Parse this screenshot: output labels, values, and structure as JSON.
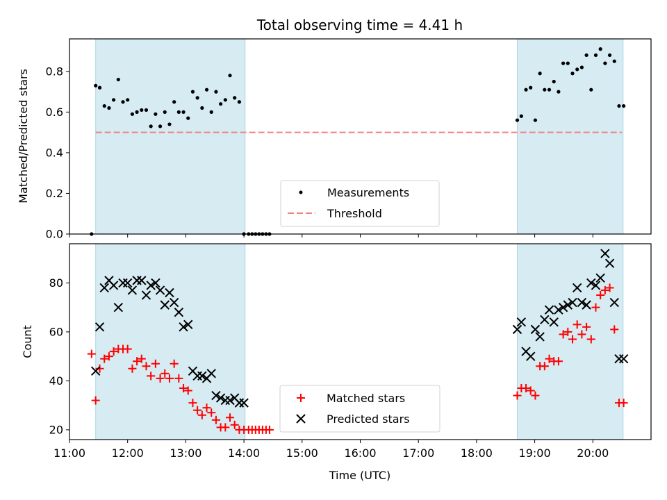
{
  "figure": {
    "title": "Total observing time = 4.41 h"
  },
  "chart_data": [
    {
      "type": "scatter",
      "panel": "top",
      "ylabel": "Matched/Predicted stars",
      "xlabel": "",
      "xlim": [
        11.0,
        21.0
      ],
      "ylim": [
        0.0,
        0.96
      ],
      "yticks": [
        0.0,
        0.2,
        0.4,
        0.6,
        0.8
      ],
      "ytick_labels": [
        "0.0",
        "0.2",
        "0.4",
        "0.6",
        "0.8"
      ],
      "grid": false,
      "legend": {
        "position": "lower-center",
        "entries": [
          "Measurements",
          "Threshold"
        ]
      },
      "shaded_regions": [
        [
          11.45,
          14.02
        ],
        [
          18.7,
          20.52
        ]
      ],
      "threshold": {
        "name": "Threshold",
        "value": 0.5,
        "x_range": [
          11.45,
          20.5
        ],
        "color": "#f08080",
        "style": "dashed"
      },
      "series": [
        {
          "name": "Measurements",
          "marker": "dot",
          "color": "#000000",
          "x": [
            11.38,
            11.45,
            11.52,
            11.6,
            11.68,
            11.76,
            11.84,
            11.92,
            12.0,
            12.08,
            12.16,
            12.24,
            12.32,
            12.4,
            12.48,
            12.56,
            12.64,
            12.72,
            12.8,
            12.88,
            12.96,
            13.04,
            13.12,
            13.2,
            13.28,
            13.36,
            13.44,
            13.52,
            13.6,
            13.68,
            13.76,
            13.84,
            13.92,
            14.0,
            14.08,
            14.14,
            14.2,
            14.26,
            14.32,
            14.38,
            14.44,
            18.7,
            18.77,
            18.85,
            18.93,
            19.01,
            19.09,
            19.17,
            19.25,
            19.33,
            19.41,
            19.49,
            19.57,
            19.65,
            19.73,
            19.81,
            19.89,
            19.97,
            20.05,
            20.13,
            20.21,
            20.29,
            20.37,
            20.45,
            20.53
          ],
          "y": [
            0.0,
            0.73,
            0.72,
            0.63,
            0.62,
            0.66,
            0.76,
            0.65,
            0.66,
            0.59,
            0.6,
            0.61,
            0.61,
            0.53,
            0.59,
            0.53,
            0.6,
            0.54,
            0.65,
            0.6,
            0.6,
            0.57,
            0.7,
            0.67,
            0.62,
            0.71,
            0.6,
            0.7,
            0.64,
            0.66,
            0.78,
            0.67,
            0.65,
            0.0,
            0.0,
            0.0,
            0.0,
            0.0,
            0.0,
            0.0,
            0.0,
            0.56,
            0.58,
            0.71,
            0.72,
            0.56,
            0.79,
            0.71,
            0.71,
            0.75,
            0.7,
            0.84,
            0.84,
            0.79,
            0.81,
            0.82,
            0.88,
            0.71,
            0.88,
            0.91,
            0.84,
            0.88,
            0.85,
            0.63,
            0.63
          ]
        }
      ]
    },
    {
      "type": "scatter",
      "panel": "bottom",
      "ylabel": "Count",
      "xlabel": "Time (UTC)",
      "xlim": [
        11.0,
        21.0
      ],
      "ylim": [
        16,
        96
      ],
      "yticks": [
        20,
        40,
        60,
        80
      ],
      "ytick_labels": [
        "20",
        "40",
        "60",
        "80"
      ],
      "xticks": [
        11,
        12,
        13,
        14,
        15,
        16,
        17,
        18,
        19,
        20
      ],
      "xtick_labels": [
        "11:00",
        "12:00",
        "13:00",
        "14:00",
        "15:00",
        "16:00",
        "17:00",
        "18:00",
        "19:00",
        "20:00"
      ],
      "grid": false,
      "legend": {
        "position": "lower-center",
        "entries": [
          "Matched stars",
          "Predicted stars"
        ]
      },
      "shaded_regions": [
        [
          11.45,
          14.02
        ],
        [
          18.7,
          20.52
        ]
      ],
      "series": [
        {
          "name": "Matched stars",
          "marker": "plus",
          "color": "#ff0000",
          "x": [
            11.38,
            11.45,
            11.52,
            11.6,
            11.68,
            11.76,
            11.84,
            11.92,
            12.0,
            12.08,
            12.16,
            12.24,
            12.32,
            12.4,
            12.48,
            12.56,
            12.64,
            12.72,
            12.8,
            12.88,
            12.96,
            13.04,
            13.12,
            13.2,
            13.28,
            13.36,
            13.44,
            13.52,
            13.6,
            13.68,
            13.76,
            13.84,
            13.92,
            14.0,
            14.08,
            14.14,
            14.2,
            14.26,
            14.32,
            14.38,
            14.44,
            18.7,
            18.77,
            18.85,
            18.93,
            19.01,
            19.09,
            19.17,
            19.25,
            19.33,
            19.41,
            19.49,
            19.57,
            19.65,
            19.73,
            19.81,
            19.89,
            19.97,
            20.05,
            20.13,
            20.21,
            20.29,
            20.37,
            20.45,
            20.53
          ],
          "y": [
            51,
            32,
            45,
            49,
            50,
            52,
            53,
            53,
            53,
            45,
            48,
            49,
            46,
            42,
            47,
            41,
            43,
            41,
            47,
            41,
            37,
            36,
            31,
            28,
            26,
            29,
            27,
            24,
            21,
            21,
            25,
            22,
            20,
            20,
            20,
            20,
            20,
            20,
            20,
            20,
            20,
            34,
            37,
            37,
            36,
            34,
            46,
            46,
            49,
            48,
            48,
            59,
            60,
            57,
            63,
            59,
            62,
            57,
            70,
            75,
            77,
            78,
            61,
            31,
            31
          ]
        },
        {
          "name": "Predicted stars",
          "marker": "x",
          "color": "#000000",
          "x": [
            11.45,
            11.52,
            11.6,
            11.68,
            11.76,
            11.84,
            11.92,
            12.0,
            12.08,
            12.16,
            12.24,
            12.32,
            12.4,
            12.48,
            12.56,
            12.64,
            12.72,
            12.8,
            12.88,
            12.96,
            13.04,
            13.12,
            13.2,
            13.28,
            13.36,
            13.44,
            13.52,
            13.6,
            13.68,
            13.76,
            13.84,
            13.92,
            14.0,
            18.7,
            18.77,
            18.85,
            18.93,
            19.01,
            19.09,
            19.17,
            19.25,
            19.33,
            19.41,
            19.49,
            19.57,
            19.65,
            19.73,
            19.81,
            19.89,
            19.97,
            20.05,
            20.13,
            20.21,
            20.29,
            20.37,
            20.45,
            20.53
          ],
          "y": [
            44,
            62,
            78,
            81,
            79,
            70,
            80,
            80,
            77,
            81,
            81,
            75,
            79,
            80,
            77,
            71,
            76,
            72,
            68,
            62,
            63,
            44,
            42,
            42,
            41,
            43,
            34,
            33,
            32,
            32,
            33,
            31,
            31,
            61,
            64,
            52,
            50,
            61,
            58,
            65,
            69,
            64,
            69,
            70,
            71,
            72,
            78,
            72,
            71,
            80,
            79,
            82,
            92,
            88,
            72,
            49,
            49
          ]
        }
      ]
    }
  ]
}
